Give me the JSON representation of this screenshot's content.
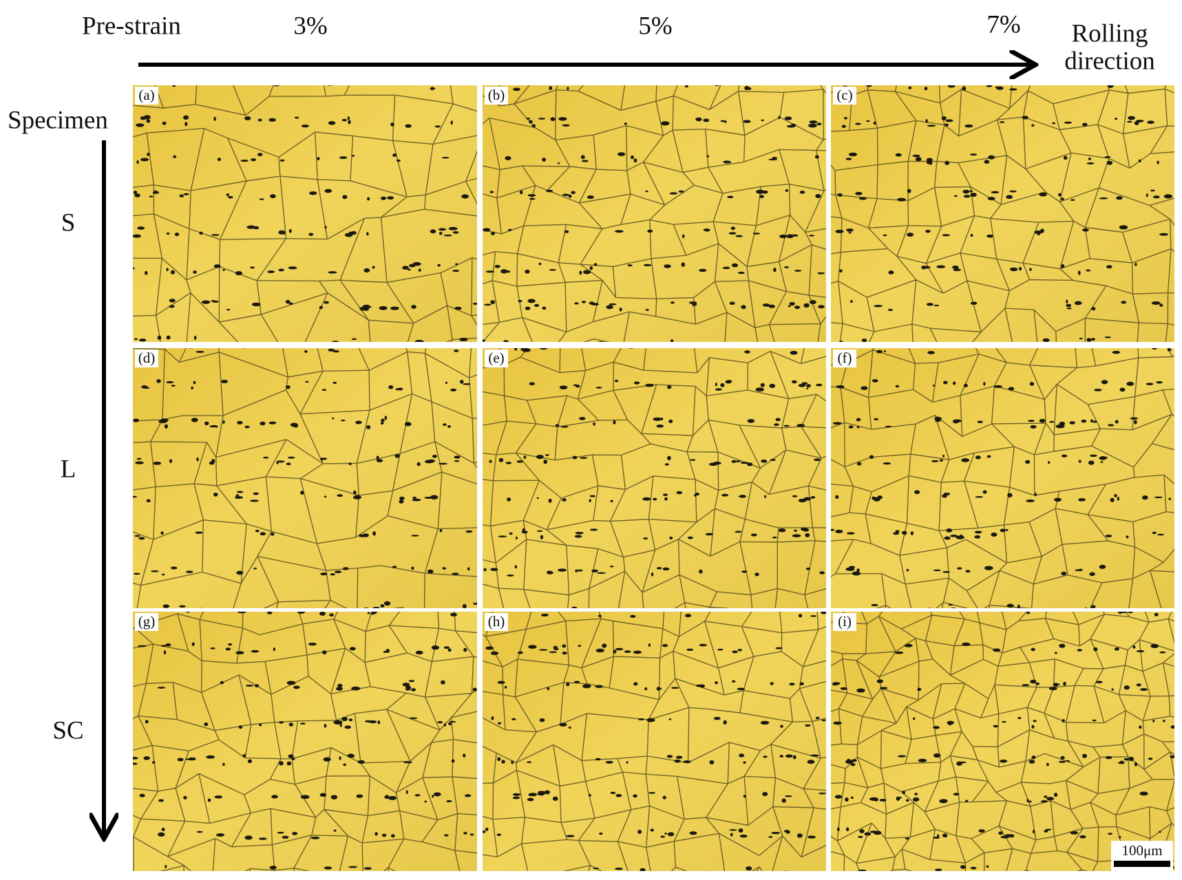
{
  "header": {
    "pre_strain_label": "Pre-strain",
    "strains": [
      "3%",
      "5%",
      "7%"
    ],
    "direction_label": [
      "Rolling",
      "direction"
    ]
  },
  "rows": {
    "title": "Specimen",
    "labels": [
      "S",
      "L",
      "SC"
    ]
  },
  "panels": [
    "(a)",
    "(b)",
    "(c)",
    "(d)",
    "(e)",
    "(f)",
    "(g)",
    "(h)",
    "(i)"
  ],
  "scale_bar": "100μm"
}
